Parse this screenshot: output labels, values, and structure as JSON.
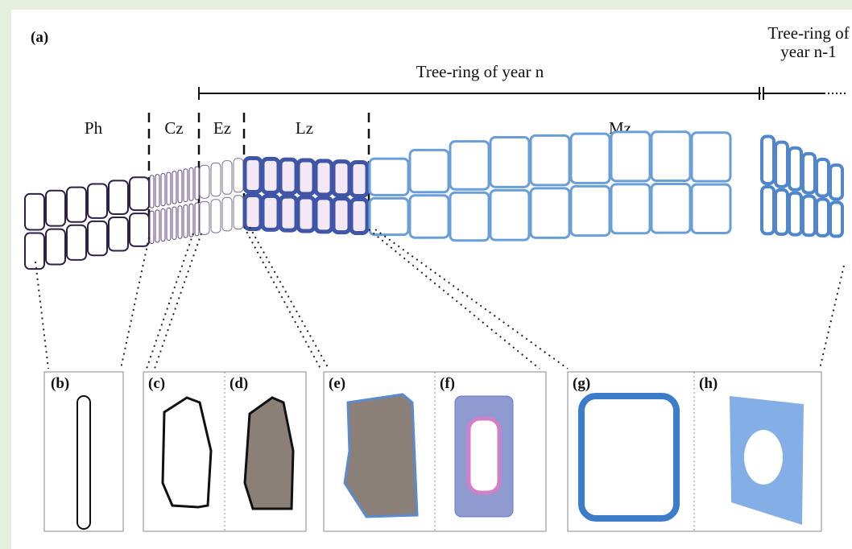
{
  "figure": {
    "panel_label": "(a)",
    "ring_current": "Tree-ring of year n",
    "ring_previous": [
      "Tree-ring of",
      "year n-1"
    ],
    "zones": [
      "Ph",
      "Cz",
      "Ez",
      "Lz",
      "Mz"
    ],
    "subpanels": [
      "(b)",
      "(c)",
      "(d)",
      "(e)",
      "(f)",
      "(g)",
      "(h)"
    ]
  }
}
